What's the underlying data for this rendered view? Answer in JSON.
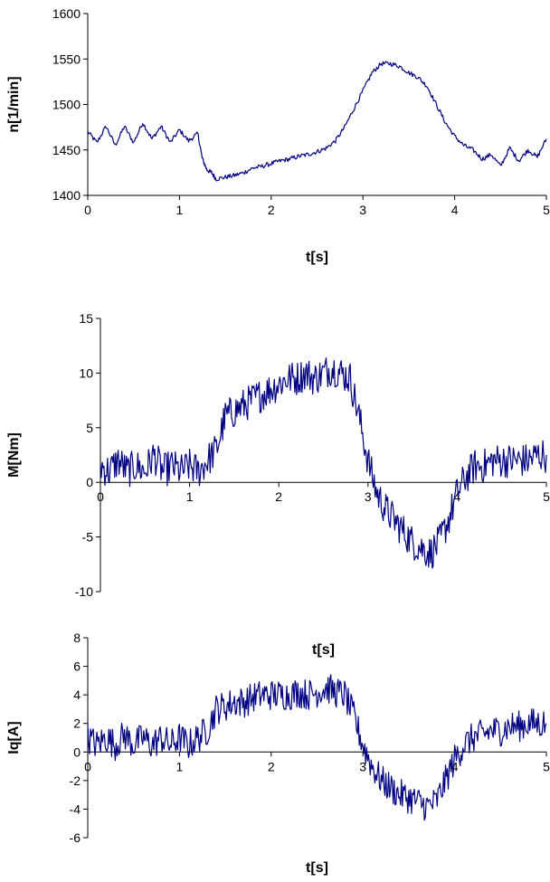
{
  "chart_data": [
    {
      "type": "line",
      "title": "",
      "xlabel": "t[s]",
      "ylabel": "n[1/min]",
      "xlim": [
        0,
        5
      ],
      "ylim": [
        1400,
        1600
      ],
      "xticks": [
        "0",
        "1",
        "2",
        "3",
        "4",
        "5"
      ],
      "yticks": [
        "1400",
        "1450",
        "1500",
        "1550",
        "1600"
      ],
      "grid": false,
      "series": [
        {
          "color": "#000080",
          "x": [
            0,
            0.1,
            0.2,
            0.3,
            0.4,
            0.5,
            0.6,
            0.7,
            0.8,
            0.9,
            1.0,
            1.1,
            1.2,
            1.25,
            1.3,
            1.35,
            1.4,
            1.5,
            1.6,
            1.7,
            1.8,
            1.9,
            2.0,
            2.1,
            2.2,
            2.3,
            2.4,
            2.5,
            2.6,
            2.7,
            2.8,
            2.9,
            3.0,
            3.1,
            3.2,
            3.3,
            3.4,
            3.5,
            3.6,
            3.7,
            3.8,
            3.9,
            4.0,
            4.1,
            4.2,
            4.3,
            4.4,
            4.5,
            4.6,
            4.7,
            4.8,
            4.9,
            5.0
          ],
          "y": [
            1470,
            1458,
            1476,
            1455,
            1476,
            1458,
            1480,
            1462,
            1476,
            1458,
            1472,
            1460,
            1468,
            1440,
            1428,
            1425,
            1418,
            1420,
            1422,
            1425,
            1430,
            1432,
            1435,
            1438,
            1440,
            1443,
            1445,
            1448,
            1452,
            1460,
            1475,
            1495,
            1515,
            1535,
            1545,
            1545,
            1542,
            1535,
            1530,
            1520,
            1500,
            1480,
            1465,
            1455,
            1450,
            1440,
            1445,
            1432,
            1452,
            1438,
            1450,
            1442,
            1462
          ]
        }
      ]
    },
    {
      "type": "line",
      "title": "",
      "xlabel": "t[s]",
      "ylabel": "M[Nm]",
      "xlim": [
        0,
        5
      ],
      "ylim": [
        -10,
        15
      ],
      "xticks": [
        "0",
        "1",
        "2",
        "3",
        "4",
        "5"
      ],
      "yticks": [
        "-10",
        "-5",
        "0",
        "5",
        "10",
        "15"
      ],
      "grid": false,
      "series": [
        {
          "color": "#000080",
          "x": [
            0,
            0.1,
            0.2,
            0.3,
            0.4,
            0.5,
            0.6,
            0.7,
            0.8,
            0.9,
            1.0,
            1.1,
            1.2,
            1.3,
            1.4,
            1.5,
            1.6,
            1.7,
            1.8,
            1.9,
            2.0,
            2.1,
            2.2,
            2.3,
            2.4,
            2.5,
            2.6,
            2.7,
            2.8,
            2.9,
            3.0,
            3.1,
            3.2,
            3.3,
            3.4,
            3.5,
            3.6,
            3.7,
            3.8,
            3.9,
            4.0,
            4.1,
            4.2,
            4.3,
            4.4,
            4.5,
            4.6,
            4.7,
            4.8,
            4.9,
            5.0
          ],
          "y": [
            1.5,
            1.0,
            2.0,
            1.0,
            1.5,
            1.0,
            2.5,
            1.0,
            1.5,
            1.0,
            1.5,
            1.0,
            2.0,
            3.0,
            6.0,
            6.5,
            7.0,
            7.5,
            8.0,
            8.5,
            9.0,
            9.5,
            9.5,
            10.0,
            9.5,
            10.0,
            10.5,
            10.0,
            9.5,
            6.0,
            2.0,
            -1.0,
            -2.5,
            -3.5,
            -4.5,
            -5.5,
            -6.0,
            -6.5,
            -5.5,
            -3.5,
            -1.0,
            0.5,
            1.5,
            1.5,
            2.0,
            2.0,
            2.0,
            2.0,
            2.0,
            2.5,
            2.5
          ]
        }
      ]
    },
    {
      "type": "line",
      "title": "",
      "xlabel": "t[s]",
      "ylabel": "Iq[A]",
      "xlim": [
        0,
        5
      ],
      "ylim": [
        -6,
        8
      ],
      "xticks": [
        "0",
        "1",
        "2",
        "3",
        "4",
        "5"
      ],
      "yticks": [
        "-6",
        "-4",
        "-2",
        "0",
        "2",
        "4",
        "6",
        "8"
      ],
      "grid": false,
      "series": [
        {
          "color": "#000080",
          "x": [
            0,
            0.1,
            0.2,
            0.3,
            0.4,
            0.5,
            0.6,
            0.7,
            0.8,
            0.9,
            1.0,
            1.1,
            1.2,
            1.3,
            1.4,
            1.5,
            1.6,
            1.7,
            1.8,
            1.9,
            2.0,
            2.1,
            2.2,
            2.3,
            2.4,
            2.5,
            2.6,
            2.7,
            2.8,
            2.9,
            3.0,
            3.1,
            3.2,
            3.3,
            3.4,
            3.5,
            3.6,
            3.7,
            3.8,
            3.9,
            4.0,
            4.1,
            4.2,
            4.3,
            4.4,
            4.5,
            4.6,
            4.7,
            4.8,
            4.9,
            5.0
          ],
          "y": [
            1.0,
            0.5,
            1.0,
            0.5,
            1.2,
            0.5,
            1.0,
            0.5,
            1.0,
            0.5,
            1.0,
            0.5,
            1.0,
            1.5,
            3.0,
            3.2,
            3.5,
            3.5,
            3.8,
            4.0,
            4.0,
            4.0,
            4.0,
            4.2,
            4.0,
            4.2,
            4.5,
            4.2,
            4.0,
            2.5,
            0.5,
            -1.0,
            -2.0,
            -2.5,
            -3.0,
            -3.2,
            -3.5,
            -3.8,
            -3.5,
            -2.0,
            -0.5,
            0.5,
            1.0,
            1.2,
            1.5,
            1.5,
            1.8,
            1.8,
            2.0,
            2.0,
            2.0
          ]
        }
      ]
    }
  ]
}
